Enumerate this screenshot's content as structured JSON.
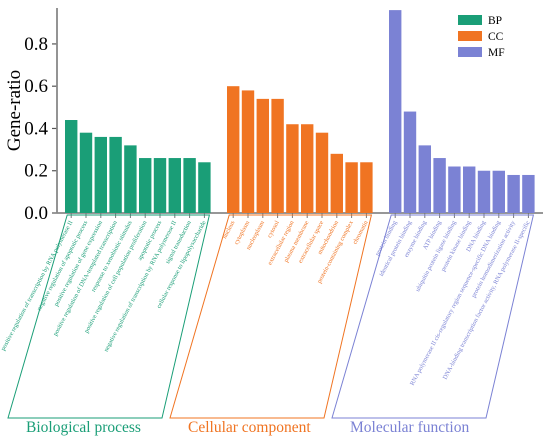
{
  "chart_data": {
    "type": "bar",
    "ylabel": "Gene-ratio",
    "xlabel": "",
    "title": "",
    "ylim": [
      0,
      0.97
    ],
    "yticks": [
      0.0,
      0.2,
      0.4,
      0.6,
      0.8
    ],
    "yticklabels": [
      "0.0",
      "0.2",
      "0.4",
      "0.6",
      "0.8"
    ],
    "grid": false,
    "legend_position": "top-right",
    "groups": [
      {
        "key": "BP",
        "name": "Biological process",
        "legend": "BP",
        "color": "#1a9e77",
        "categories": [
          "positive regulation of transcription by RNA polymerase II",
          "negative regulation of apoptotic process",
          "positive regulation of gene expression",
          "positive regulation of DNA-templated transcription",
          "response to xenobiotic stimulus",
          "positive regulation of cell population proliferation",
          "apoptotic process",
          "negative regulation of transcription by RNA polymerase II",
          "signal transduction",
          "cellular response to lipopolysaccharide"
        ],
        "values": [
          0.44,
          0.38,
          0.36,
          0.36,
          0.32,
          0.26,
          0.26,
          0.26,
          0.26,
          0.24
        ]
      },
      {
        "key": "CC",
        "name": "Cellular component",
        "legend": "CC",
        "color": "#f07422",
        "categories": [
          "nucleus",
          "cytoplasm",
          "nucleoplasm",
          "cytosol",
          "extracellular region",
          "plasma membrane",
          "extracellular space",
          "mitochondrion",
          "protein-containing complex",
          "chromatin"
        ],
        "values": [
          0.6,
          0.58,
          0.54,
          0.54,
          0.42,
          0.42,
          0.38,
          0.28,
          0.24,
          0.24
        ]
      },
      {
        "key": "MF",
        "name": "Molecular function",
        "legend": "MF",
        "color": "#7b82d4",
        "categories": [
          "protein binding",
          "identical protein binding",
          "enzyme binding",
          "ATP binding",
          "ubiquitin protein ligase binding",
          "protein kinase binding",
          "DNA binding",
          "RNA polymerase II cis-regulatory region sequence-specific DNA binding",
          "protein homodimerization activity",
          "DNA-binding transcription factor activity, RNA polymerase II-specific"
        ],
        "values": [
          0.96,
          0.48,
          0.32,
          0.26,
          0.22,
          0.22,
          0.2,
          0.2,
          0.18,
          0.18
        ]
      }
    ]
  }
}
